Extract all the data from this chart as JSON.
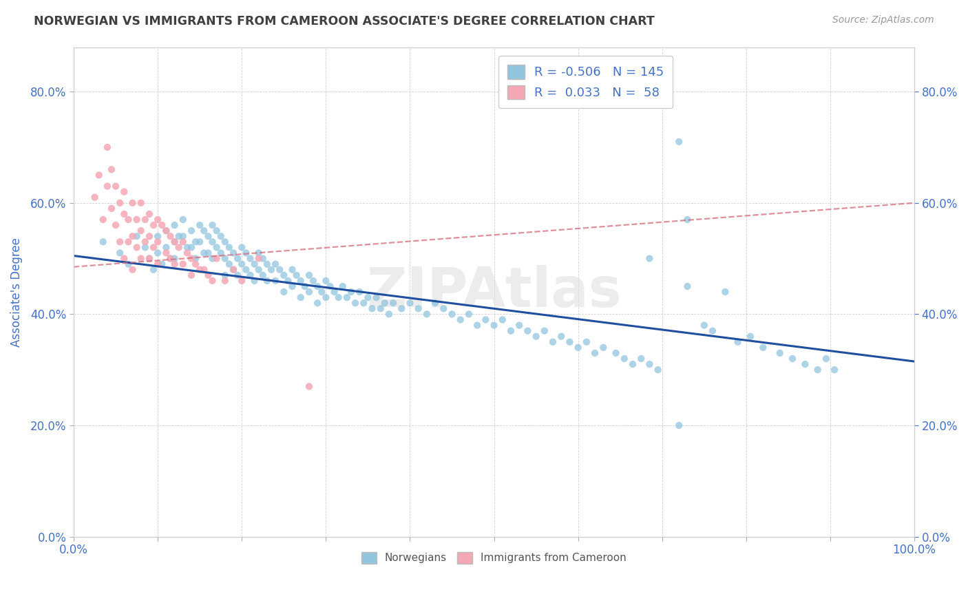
{
  "title": "NORWEGIAN VS IMMIGRANTS FROM CAMEROON ASSOCIATE'S DEGREE CORRELATION CHART",
  "source": "Source: ZipAtlas.com",
  "ylabel": "Associate's Degree",
  "legend_norwegians": "Norwegians",
  "legend_immigrants": "Immigrants from Cameroon",
  "r_norwegian": -0.506,
  "n_norwegian": 145,
  "r_immigrant": 0.033,
  "n_immigrant": 58,
  "watermark": "ZIPAtlas",
  "blue_color": "#92c5de",
  "blue_line_color": "#1f4e9e",
  "pink_color": "#f4a7b4",
  "pink_line_color": "#d46a7a",
  "axis_label_color": "#4472c4",
  "title_color": "#404040",
  "background_color": "#ffffff",
  "grid_color": "#d0d0d0",
  "ylim": [
    0.0,
    0.88
  ],
  "xlim": [
    0.0,
    1.0
  ],
  "nor_trend_x0": 0.0,
  "nor_trend_y0": 0.505,
  "nor_trend_x1": 1.0,
  "nor_trend_y1": 0.315,
  "imm_trend_x0": 0.0,
  "imm_trend_y0": 0.485,
  "imm_trend_x1": 1.0,
  "imm_trend_y1": 0.6,
  "norwegian_x": [
    0.035,
    0.055,
    0.065,
    0.075,
    0.085,
    0.09,
    0.095,
    0.1,
    0.1,
    0.105,
    0.11,
    0.11,
    0.115,
    0.12,
    0.12,
    0.12,
    0.125,
    0.13,
    0.13,
    0.135,
    0.14,
    0.14,
    0.145,
    0.145,
    0.15,
    0.15,
    0.155,
    0.155,
    0.16,
    0.16,
    0.165,
    0.165,
    0.165,
    0.17,
    0.17,
    0.175,
    0.175,
    0.18,
    0.18,
    0.18,
    0.185,
    0.185,
    0.19,
    0.19,
    0.195,
    0.195,
    0.2,
    0.2,
    0.205,
    0.205,
    0.21,
    0.21,
    0.215,
    0.215,
    0.22,
    0.22,
    0.225,
    0.225,
    0.23,
    0.23,
    0.235,
    0.24,
    0.24,
    0.245,
    0.25,
    0.25,
    0.255,
    0.26,
    0.26,
    0.265,
    0.27,
    0.27,
    0.275,
    0.28,
    0.28,
    0.285,
    0.29,
    0.29,
    0.295,
    0.3,
    0.3,
    0.305,
    0.31,
    0.315,
    0.32,
    0.325,
    0.33,
    0.335,
    0.34,
    0.345,
    0.35,
    0.355,
    0.36,
    0.365,
    0.37,
    0.375,
    0.38,
    0.39,
    0.4,
    0.41,
    0.42,
    0.43,
    0.44,
    0.45,
    0.46,
    0.47,
    0.48,
    0.49,
    0.5,
    0.51,
    0.52,
    0.53,
    0.54,
    0.55,
    0.56,
    0.57,
    0.58,
    0.59,
    0.6,
    0.61,
    0.62,
    0.63,
    0.645,
    0.655,
    0.665,
    0.675,
    0.685,
    0.695,
    0.72,
    0.73,
    0.75,
    0.76,
    0.775,
    0.79,
    0.805,
    0.82,
    0.84,
    0.855,
    0.87,
    0.885,
    0.895,
    0.905,
    0.73,
    0.72,
    0.685
  ],
  "norwegian_y": [
    0.53,
    0.51,
    0.49,
    0.54,
    0.52,
    0.5,
    0.48,
    0.54,
    0.51,
    0.49,
    0.55,
    0.52,
    0.5,
    0.56,
    0.53,
    0.5,
    0.54,
    0.57,
    0.54,
    0.52,
    0.55,
    0.52,
    0.53,
    0.5,
    0.56,
    0.53,
    0.55,
    0.51,
    0.54,
    0.51,
    0.56,
    0.53,
    0.5,
    0.55,
    0.52,
    0.54,
    0.51,
    0.53,
    0.5,
    0.47,
    0.52,
    0.49,
    0.51,
    0.48,
    0.5,
    0.47,
    0.52,
    0.49,
    0.51,
    0.48,
    0.5,
    0.47,
    0.49,
    0.46,
    0.51,
    0.48,
    0.5,
    0.47,
    0.49,
    0.46,
    0.48,
    0.49,
    0.46,
    0.48,
    0.47,
    0.44,
    0.46,
    0.48,
    0.45,
    0.47,
    0.46,
    0.43,
    0.45,
    0.47,
    0.44,
    0.46,
    0.45,
    0.42,
    0.44,
    0.46,
    0.43,
    0.45,
    0.44,
    0.43,
    0.45,
    0.43,
    0.44,
    0.42,
    0.44,
    0.42,
    0.43,
    0.41,
    0.43,
    0.41,
    0.42,
    0.4,
    0.42,
    0.41,
    0.42,
    0.41,
    0.4,
    0.42,
    0.41,
    0.4,
    0.39,
    0.4,
    0.38,
    0.39,
    0.38,
    0.39,
    0.37,
    0.38,
    0.37,
    0.36,
    0.37,
    0.35,
    0.36,
    0.35,
    0.34,
    0.35,
    0.33,
    0.34,
    0.33,
    0.32,
    0.31,
    0.32,
    0.31,
    0.3,
    0.2,
    0.45,
    0.38,
    0.37,
    0.44,
    0.35,
    0.36,
    0.34,
    0.33,
    0.32,
    0.31,
    0.3,
    0.32,
    0.3,
    0.57,
    0.71,
    0.5
  ],
  "immigrant_x": [
    0.025,
    0.03,
    0.035,
    0.04,
    0.04,
    0.045,
    0.045,
    0.05,
    0.05,
    0.055,
    0.055,
    0.06,
    0.06,
    0.06,
    0.065,
    0.065,
    0.07,
    0.07,
    0.07,
    0.075,
    0.075,
    0.08,
    0.08,
    0.08,
    0.085,
    0.085,
    0.09,
    0.09,
    0.09,
    0.095,
    0.095,
    0.1,
    0.1,
    0.1,
    0.105,
    0.11,
    0.11,
    0.115,
    0.115,
    0.12,
    0.12,
    0.125,
    0.13,
    0.13,
    0.135,
    0.14,
    0.14,
    0.145,
    0.15,
    0.155,
    0.16,
    0.165,
    0.17,
    0.18,
    0.19,
    0.2,
    0.22,
    0.28
  ],
  "immigrant_y": [
    0.61,
    0.65,
    0.57,
    0.7,
    0.63,
    0.66,
    0.59,
    0.63,
    0.56,
    0.6,
    0.53,
    0.58,
    0.62,
    0.5,
    0.57,
    0.53,
    0.6,
    0.54,
    0.48,
    0.57,
    0.52,
    0.6,
    0.55,
    0.5,
    0.57,
    0.53,
    0.58,
    0.54,
    0.5,
    0.56,
    0.52,
    0.57,
    0.53,
    0.49,
    0.56,
    0.55,
    0.51,
    0.54,
    0.5,
    0.53,
    0.49,
    0.52,
    0.53,
    0.49,
    0.51,
    0.5,
    0.47,
    0.49,
    0.48,
    0.48,
    0.47,
    0.46,
    0.5,
    0.46,
    0.48,
    0.46,
    0.5,
    0.27
  ]
}
